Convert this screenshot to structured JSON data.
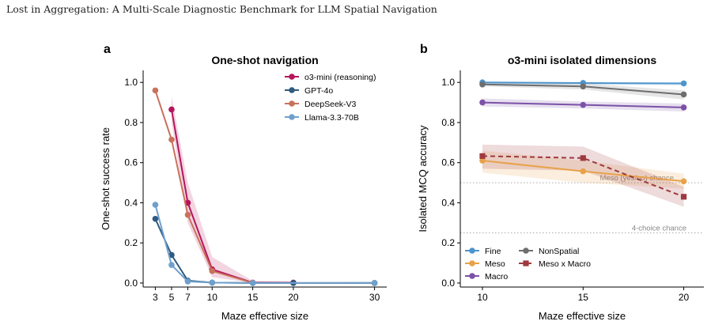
{
  "header": {
    "title": "Lost in Aggregation: A Multi-Scale Diagnostic Benchmark for LLM Spatial Navigation"
  },
  "colors": {
    "o3_mini": "#b5155b",
    "gpt_4o": "#2f5b80",
    "deepseek": "#c8725b",
    "llama": "#6fa0cc",
    "fine": "#4d94cc",
    "meso": "#e8a24a",
    "macro": "#7b52a8",
    "nonspatial": "#6e6e6e",
    "meso_x_macro": "#9e3a3f"
  },
  "chart_data": [
    {
      "panel_label": "a",
      "type": "line",
      "title": "One-shot navigation",
      "xlabel": "Maze effective size",
      "ylabel": "One-shot success rate",
      "xlim": [
        1.5,
        31.5
      ],
      "ylim": [
        -0.02,
        1.06
      ],
      "xticks": [
        3,
        5,
        7,
        10,
        15,
        20,
        30
      ],
      "yticks": [
        "0.0",
        "0.2",
        "0.4",
        "0.6",
        "0.8",
        "1.0"
      ],
      "legend_position": "top-right",
      "series": [
        {
          "name": "o3-mini (reasoning)",
          "color_key": "o3_mini",
          "x": [
            5,
            7,
            10,
            15,
            20
          ],
          "y": [
            0.865,
            0.4,
            0.068,
            0.002,
            0.002
          ],
          "band_low": [
            0.8,
            0.3,
            0.03,
            0.0,
            0.0
          ],
          "band_high": [
            0.93,
            0.5,
            0.13,
            0.01,
            0.005
          ]
        },
        {
          "name": "GPT-4o",
          "color_key": "gpt_4o",
          "x": [
            3,
            5,
            7,
            10,
            15,
            20,
            30
          ],
          "y": [
            0.32,
            0.14,
            0.012,
            0.002,
            0.0,
            0.0,
            0.0
          ]
        },
        {
          "name": "DeepSeek-V3",
          "color_key": "deepseek",
          "x": [
            3,
            5,
            7,
            10,
            15
          ],
          "y": [
            0.96,
            0.715,
            0.34,
            0.06,
            0.001
          ]
        },
        {
          "name": "Llama-3.3-70B",
          "color_key": "llama",
          "x": [
            3,
            5,
            7,
            10,
            15,
            30
          ],
          "y": [
            0.39,
            0.09,
            0.008,
            0.002,
            0.0,
            0.001
          ]
        }
      ]
    },
    {
      "panel_label": "b",
      "type": "line",
      "title": "o3-mini isolated dimensions",
      "xlabel": "Maze effective size",
      "ylabel": "Isolated MCQ accuracy",
      "xlim": [
        8.9,
        21
      ],
      "ylim": [
        -0.02,
        1.06
      ],
      "xticks": [
        10,
        15,
        20
      ],
      "yticks": [
        "0.0",
        "0.2",
        "0.4",
        "0.6",
        "0.8",
        "1.0"
      ],
      "legend_position": "bottom-left",
      "reference_lines": [
        {
          "label": "Meso (yes/no) chance",
          "y": 0.5
        },
        {
          "label": "4-choice chance",
          "y": 0.25
        }
      ],
      "series": [
        {
          "name": "Fine",
          "color_key": "fine",
          "marker": "circle",
          "x": [
            10,
            15,
            20
          ],
          "y": [
            1.0,
            0.997,
            0.995
          ],
          "band_low": [
            0.99,
            0.99,
            0.985
          ],
          "band_high": [
            1.0,
            1.0,
            1.0
          ]
        },
        {
          "name": "NonSpatial",
          "color_key": "nonspatial",
          "marker": "circle",
          "x": [
            10,
            15,
            20
          ],
          "y": [
            0.99,
            0.98,
            0.94
          ],
          "band_low": [
            0.98,
            0.965,
            0.915
          ],
          "band_high": [
            1.0,
            0.995,
            0.96
          ]
        },
        {
          "name": "Meso",
          "color_key": "meso",
          "marker": "circle",
          "x": [
            10,
            15,
            20
          ],
          "y": [
            0.61,
            0.557,
            0.507
          ],
          "band_low": [
            0.55,
            0.5,
            0.47
          ],
          "band_high": [
            0.66,
            0.61,
            0.545
          ]
        },
        {
          "name": "Meso x Macro",
          "color_key": "meso_x_macro",
          "marker": "square",
          "dashed": true,
          "x": [
            10,
            15,
            20
          ],
          "y": [
            0.633,
            0.623,
            0.43
          ],
          "band_low": [
            0.57,
            0.56,
            0.38
          ],
          "band_high": [
            0.69,
            0.68,
            0.48
          ]
        },
        {
          "name": "Macro",
          "color_key": "macro",
          "marker": "circle",
          "x": [
            10,
            15,
            20
          ],
          "y": [
            0.9,
            0.888,
            0.875
          ],
          "band_low": [
            0.88,
            0.87,
            0.855
          ],
          "band_high": [
            0.92,
            0.905,
            0.895
          ]
        }
      ],
      "legend_order": [
        "Fine",
        "Meso",
        "Macro",
        "NonSpatial",
        "Meso x Macro"
      ]
    }
  ]
}
